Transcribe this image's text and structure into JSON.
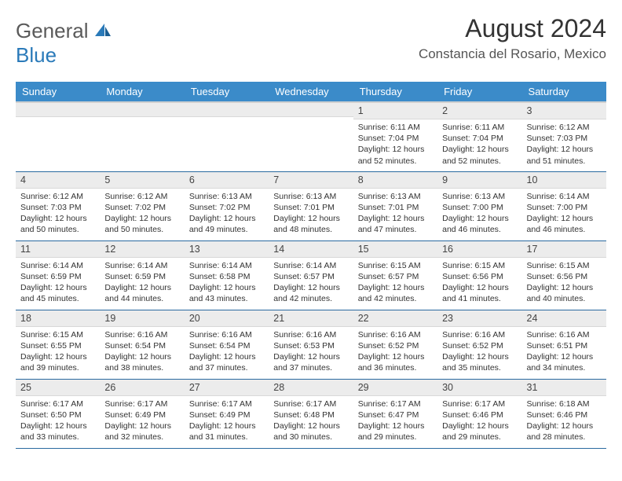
{
  "logo": {
    "word1": "General",
    "word2": "Blue"
  },
  "title": "August 2024",
  "location": "Constancia del Rosario, Mexico",
  "weekdays": [
    "Sunday",
    "Monday",
    "Tuesday",
    "Wednesday",
    "Thursday",
    "Friday",
    "Saturday"
  ],
  "colors": {
    "header_bg": "#3b8bc9",
    "header_text": "#ffffff",
    "daynum_bg": "#ececec",
    "row_border": "#2a6aa0",
    "logo_blue": "#2a7ab9",
    "logo_gray": "#5a5a5a",
    "body_text": "#333333"
  },
  "weeks": [
    [
      {
        "n": "",
        "sr": "",
        "ss": "",
        "dl": ""
      },
      {
        "n": "",
        "sr": "",
        "ss": "",
        "dl": ""
      },
      {
        "n": "",
        "sr": "",
        "ss": "",
        "dl": ""
      },
      {
        "n": "",
        "sr": "",
        "ss": "",
        "dl": ""
      },
      {
        "n": "1",
        "sr": "Sunrise: 6:11 AM",
        "ss": "Sunset: 7:04 PM",
        "dl": "Daylight: 12 hours and 52 minutes."
      },
      {
        "n": "2",
        "sr": "Sunrise: 6:11 AM",
        "ss": "Sunset: 7:04 PM",
        "dl": "Daylight: 12 hours and 52 minutes."
      },
      {
        "n": "3",
        "sr": "Sunrise: 6:12 AM",
        "ss": "Sunset: 7:03 PM",
        "dl": "Daylight: 12 hours and 51 minutes."
      }
    ],
    [
      {
        "n": "4",
        "sr": "Sunrise: 6:12 AM",
        "ss": "Sunset: 7:03 PM",
        "dl": "Daylight: 12 hours and 50 minutes."
      },
      {
        "n": "5",
        "sr": "Sunrise: 6:12 AM",
        "ss": "Sunset: 7:02 PM",
        "dl": "Daylight: 12 hours and 50 minutes."
      },
      {
        "n": "6",
        "sr": "Sunrise: 6:13 AM",
        "ss": "Sunset: 7:02 PM",
        "dl": "Daylight: 12 hours and 49 minutes."
      },
      {
        "n": "7",
        "sr": "Sunrise: 6:13 AM",
        "ss": "Sunset: 7:01 PM",
        "dl": "Daylight: 12 hours and 48 minutes."
      },
      {
        "n": "8",
        "sr": "Sunrise: 6:13 AM",
        "ss": "Sunset: 7:01 PM",
        "dl": "Daylight: 12 hours and 47 minutes."
      },
      {
        "n": "9",
        "sr": "Sunrise: 6:13 AM",
        "ss": "Sunset: 7:00 PM",
        "dl": "Daylight: 12 hours and 46 minutes."
      },
      {
        "n": "10",
        "sr": "Sunrise: 6:14 AM",
        "ss": "Sunset: 7:00 PM",
        "dl": "Daylight: 12 hours and 46 minutes."
      }
    ],
    [
      {
        "n": "11",
        "sr": "Sunrise: 6:14 AM",
        "ss": "Sunset: 6:59 PM",
        "dl": "Daylight: 12 hours and 45 minutes."
      },
      {
        "n": "12",
        "sr": "Sunrise: 6:14 AM",
        "ss": "Sunset: 6:59 PM",
        "dl": "Daylight: 12 hours and 44 minutes."
      },
      {
        "n": "13",
        "sr": "Sunrise: 6:14 AM",
        "ss": "Sunset: 6:58 PM",
        "dl": "Daylight: 12 hours and 43 minutes."
      },
      {
        "n": "14",
        "sr": "Sunrise: 6:14 AM",
        "ss": "Sunset: 6:57 PM",
        "dl": "Daylight: 12 hours and 42 minutes."
      },
      {
        "n": "15",
        "sr": "Sunrise: 6:15 AM",
        "ss": "Sunset: 6:57 PM",
        "dl": "Daylight: 12 hours and 42 minutes."
      },
      {
        "n": "16",
        "sr": "Sunrise: 6:15 AM",
        "ss": "Sunset: 6:56 PM",
        "dl": "Daylight: 12 hours and 41 minutes."
      },
      {
        "n": "17",
        "sr": "Sunrise: 6:15 AM",
        "ss": "Sunset: 6:56 PM",
        "dl": "Daylight: 12 hours and 40 minutes."
      }
    ],
    [
      {
        "n": "18",
        "sr": "Sunrise: 6:15 AM",
        "ss": "Sunset: 6:55 PM",
        "dl": "Daylight: 12 hours and 39 minutes."
      },
      {
        "n": "19",
        "sr": "Sunrise: 6:16 AM",
        "ss": "Sunset: 6:54 PM",
        "dl": "Daylight: 12 hours and 38 minutes."
      },
      {
        "n": "20",
        "sr": "Sunrise: 6:16 AM",
        "ss": "Sunset: 6:54 PM",
        "dl": "Daylight: 12 hours and 37 minutes."
      },
      {
        "n": "21",
        "sr": "Sunrise: 6:16 AM",
        "ss": "Sunset: 6:53 PM",
        "dl": "Daylight: 12 hours and 37 minutes."
      },
      {
        "n": "22",
        "sr": "Sunrise: 6:16 AM",
        "ss": "Sunset: 6:52 PM",
        "dl": "Daylight: 12 hours and 36 minutes."
      },
      {
        "n": "23",
        "sr": "Sunrise: 6:16 AM",
        "ss": "Sunset: 6:52 PM",
        "dl": "Daylight: 12 hours and 35 minutes."
      },
      {
        "n": "24",
        "sr": "Sunrise: 6:16 AM",
        "ss": "Sunset: 6:51 PM",
        "dl": "Daylight: 12 hours and 34 minutes."
      }
    ],
    [
      {
        "n": "25",
        "sr": "Sunrise: 6:17 AM",
        "ss": "Sunset: 6:50 PM",
        "dl": "Daylight: 12 hours and 33 minutes."
      },
      {
        "n": "26",
        "sr": "Sunrise: 6:17 AM",
        "ss": "Sunset: 6:49 PM",
        "dl": "Daylight: 12 hours and 32 minutes."
      },
      {
        "n": "27",
        "sr": "Sunrise: 6:17 AM",
        "ss": "Sunset: 6:49 PM",
        "dl": "Daylight: 12 hours and 31 minutes."
      },
      {
        "n": "28",
        "sr": "Sunrise: 6:17 AM",
        "ss": "Sunset: 6:48 PM",
        "dl": "Daylight: 12 hours and 30 minutes."
      },
      {
        "n": "29",
        "sr": "Sunrise: 6:17 AM",
        "ss": "Sunset: 6:47 PM",
        "dl": "Daylight: 12 hours and 29 minutes."
      },
      {
        "n": "30",
        "sr": "Sunrise: 6:17 AM",
        "ss": "Sunset: 6:46 PM",
        "dl": "Daylight: 12 hours and 29 minutes."
      },
      {
        "n": "31",
        "sr": "Sunrise: 6:18 AM",
        "ss": "Sunset: 6:46 PM",
        "dl": "Daylight: 12 hours and 28 minutes."
      }
    ]
  ]
}
